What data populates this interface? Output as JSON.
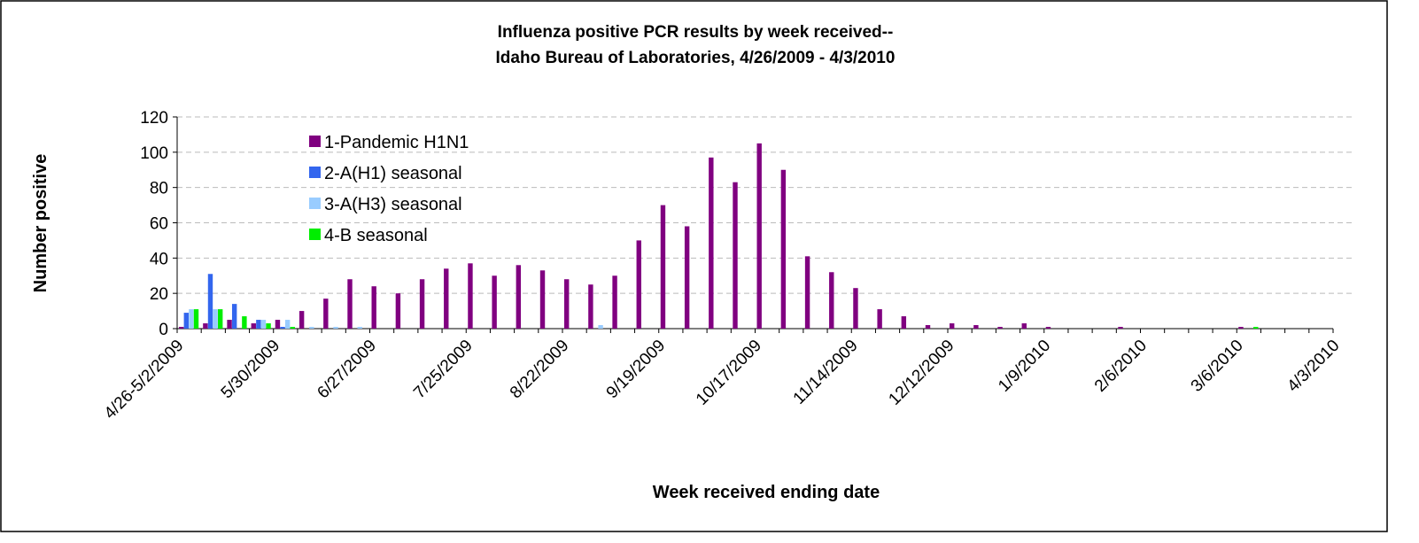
{
  "chart_data": {
    "type": "bar",
    "title": [
      "Influenza positive PCR results by week received--",
      "Idaho Bureau of Laboratories, 4/26/2009 - 4/3/2010"
    ],
    "x_label": "Week received ending date",
    "y_label": "Number positive",
    "categories": [
      "4/26-5/2/2009",
      null,
      null,
      null,
      "5/30/2009",
      null,
      null,
      null,
      "6/27/2009",
      null,
      null,
      null,
      "7/25/2009",
      null,
      null,
      null,
      "8/22/2009",
      null,
      null,
      null,
      "9/19/2009",
      null,
      null,
      null,
      "10/17/2009",
      null,
      null,
      null,
      "11/14/2009",
      null,
      null,
      null,
      "12/12/2009",
      null,
      null,
      null,
      "1/9/2010",
      null,
      null,
      null,
      "2/6/2010",
      null,
      null,
      null,
      "3/6/2010",
      null,
      null,
      null,
      "4/3/2010"
    ],
    "series": [
      {
        "name": "1-Pandemic H1N1",
        "color": "#800080",
        "values": [
          1,
          3,
          5,
          3,
          5,
          10,
          17,
          28,
          24,
          20,
          28,
          34,
          37,
          30,
          36,
          33,
          28,
          25,
          30,
          50,
          70,
          58,
          97,
          83,
          105,
          90,
          41,
          32,
          23,
          11,
          7,
          2,
          3,
          2,
          1,
          3,
          1,
          0,
          0,
          1,
          0,
          0,
          0,
          0,
          1,
          0,
          0,
          0,
          0
        ]
      },
      {
        "name": "2-A(H1) seasonal",
        "color": "#3366ee",
        "values": [
          9,
          31,
          14,
          5,
          1,
          0,
          0,
          0,
          0,
          0,
          0,
          0,
          0,
          0,
          0,
          0,
          0,
          0,
          0,
          0,
          0,
          0,
          0,
          0,
          0,
          0,
          0,
          0,
          0,
          0,
          0,
          0,
          0,
          0,
          0,
          0,
          0,
          0,
          0,
          0,
          0,
          0,
          0,
          0,
          0,
          0,
          0,
          0,
          0
        ]
      },
      {
        "name": "3-A(H3) seasonal",
        "color": "#99ccff",
        "values": [
          11,
          11,
          0,
          5,
          5,
          1,
          1,
          1,
          0,
          0,
          0,
          0,
          0,
          0,
          0,
          0,
          0,
          2,
          0,
          0,
          0,
          0,
          0,
          0,
          0,
          0,
          0,
          0,
          0,
          0,
          0,
          0,
          0,
          0,
          0,
          0,
          0,
          0,
          0,
          0,
          0,
          0,
          0,
          0,
          0,
          0,
          0,
          0,
          0
        ]
      },
      {
        "name": "4-B seasonal",
        "color": "#00ee00",
        "values": [
          11,
          11,
          7,
          3,
          1,
          0,
          0,
          0,
          0,
          0,
          0,
          0,
          0,
          0,
          0,
          0,
          0,
          0,
          0,
          0,
          0,
          0,
          0,
          0,
          0,
          0,
          0,
          0,
          0,
          0,
          0,
          0,
          0,
          0,
          0,
          0,
          0,
          0,
          0,
          0,
          0,
          0,
          0,
          0,
          1,
          0,
          0,
          0,
          0
        ]
      }
    ],
    "ylim": [
      0,
      120
    ],
    "yticks": [
      0,
      20,
      40,
      60,
      80,
      100,
      120
    ],
    "grid": true,
    "legend": "upper left"
  }
}
